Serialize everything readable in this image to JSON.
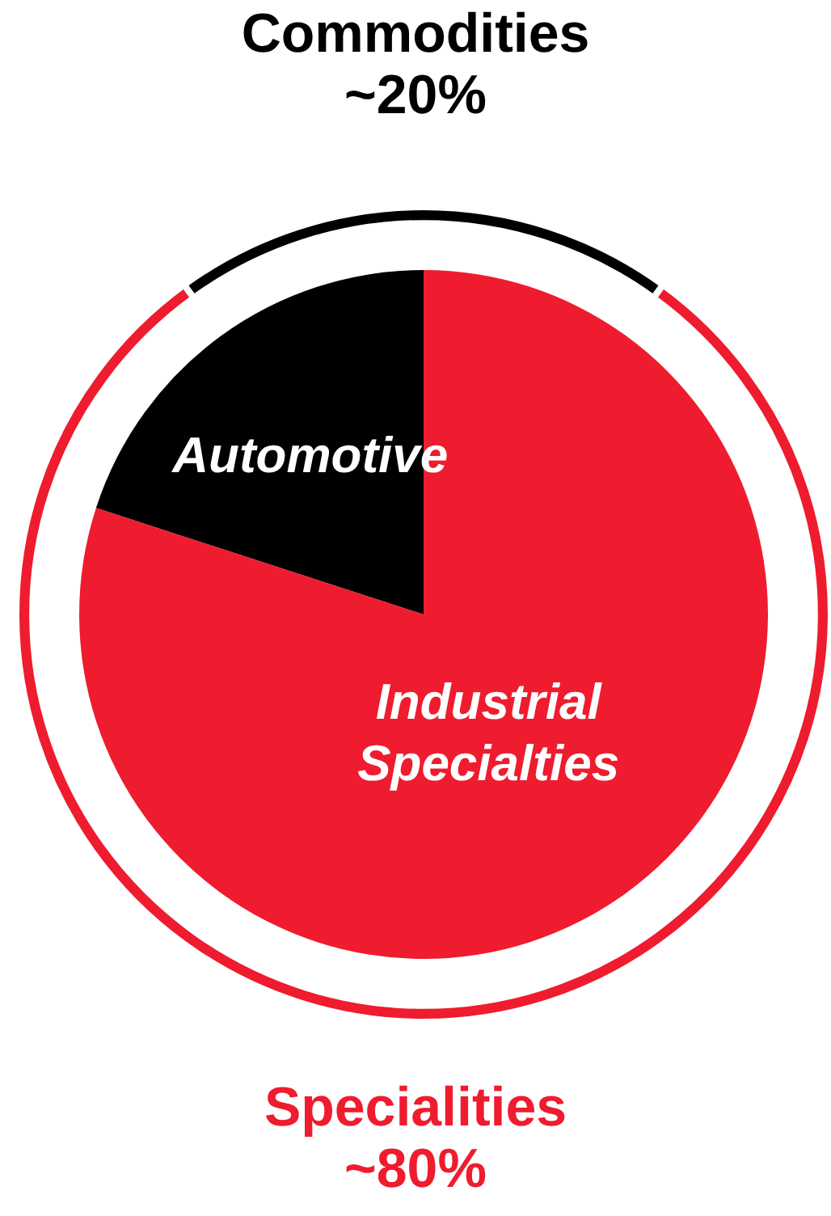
{
  "chart_data": {
    "type": "pie",
    "categories": [
      "Automotive",
      "Industrial Specialties"
    ],
    "series": [
      {
        "values": [
          20,
          80
        ],
        "colors": [
          "#000000",
          "#ee1c2e"
        ]
      },
      {
        "values": [
          20,
          80
        ],
        "colors": [
          "#000000",
          "#ee1c2e"
        ]
      }
    ],
    "annotations": [
      "Commodities\n~20%",
      "Specialities\n~80%"
    ]
  }
}
